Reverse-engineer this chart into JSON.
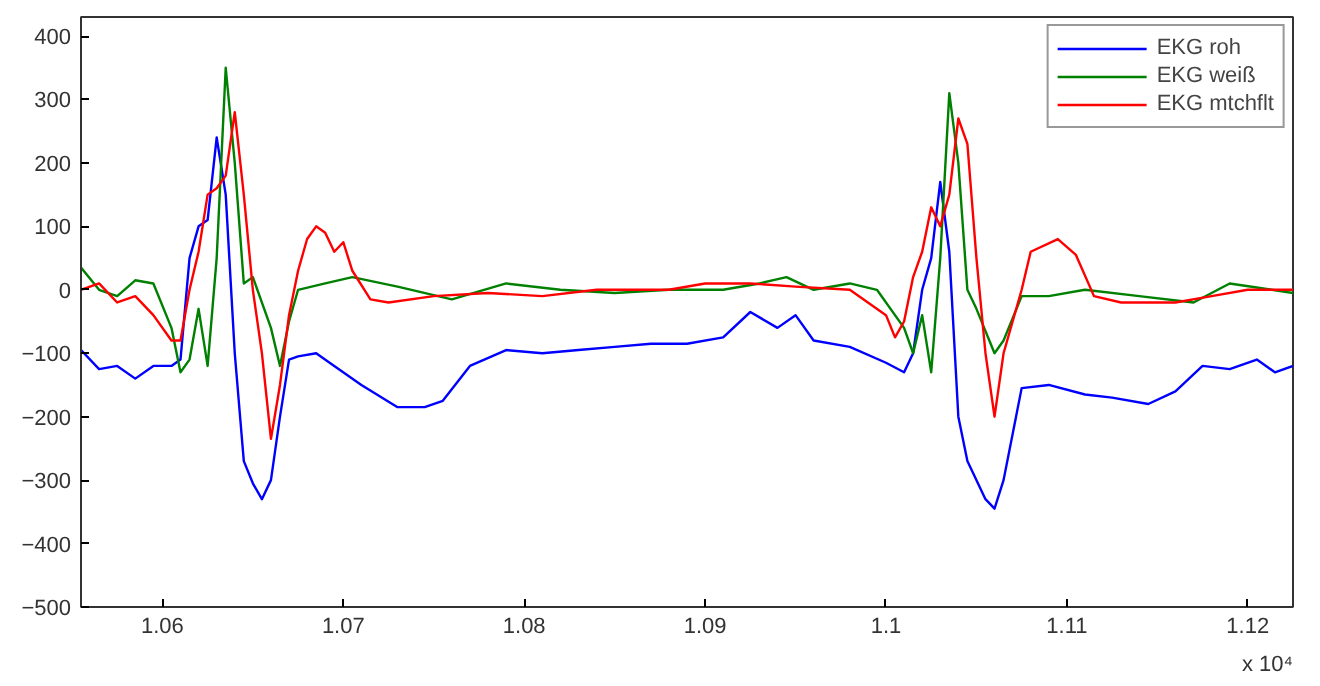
{
  "chart_data": {
    "type": "line",
    "xlim": [
      1.0555,
      1.1225
    ],
    "ylim": [
      -500,
      430
    ],
    "xticks": [
      1.06,
      1.07,
      1.08,
      1.09,
      {
        "value": 1.1,
        "label": "1.1"
      },
      1.11,
      1.12
    ],
    "yticks": [
      -500,
      -400,
      -300,
      -200,
      -100,
      0,
      100,
      200,
      300,
      400
    ],
    "annotations": [
      "x 10⁴"
    ],
    "legend": "top right",
    "grid": false,
    "line_style": "solid",
    "marker": "none",
    "series": [
      {
        "name": "EKG roh",
        "color": "#0000ff",
        "x": [
          1.0555,
          1.0565,
          1.0575,
          1.0585,
          1.0595,
          1.0605,
          1.061,
          1.0615,
          1.062,
          1.0625,
          1.063,
          1.0635,
          1.064,
          1.0645,
          1.065,
          1.0655,
          1.066,
          1.0665,
          1.067,
          1.0675,
          1.0685,
          1.0695,
          1.071,
          1.073,
          1.0745,
          1.0755,
          1.077,
          1.079,
          1.081,
          1.083,
          1.085,
          1.087,
          1.089,
          1.091,
          1.0925,
          1.094,
          1.095,
          1.096,
          1.098,
          1.1,
          1.101,
          1.1015,
          1.102,
          1.1025,
          1.103,
          1.1035,
          1.104,
          1.1045,
          1.1055,
          1.106,
          1.1065,
          1.1075,
          1.109,
          1.111,
          1.1125,
          1.1145,
          1.116,
          1.1175,
          1.119,
          1.1205,
          1.1215,
          1.1225
        ],
        "values": [
          -95,
          -125,
          -120,
          -140,
          -120,
          -120,
          -110,
          50,
          100,
          110,
          240,
          150,
          -100,
          -270,
          -305,
          -330,
          -300,
          -200,
          -110,
          -105,
          -100,
          -120,
          -150,
          -185,
          -185,
          -175,
          -120,
          -95,
          -100,
          -95,
          -90,
          -85,
          -85,
          -75,
          -35,
          -60,
          -40,
          -80,
          -90,
          -115,
          -130,
          -100,
          0,
          50,
          170,
          60,
          -200,
          -270,
          -330,
          -345,
          -300,
          -155,
          -150,
          -165,
          -170,
          -180,
          -160,
          -120,
          -125,
          -110,
          -130,
          -120
        ]
      },
      {
        "name": "EKG weiß",
        "color": "#008000",
        "x": [
          1.0555,
          1.0565,
          1.0575,
          1.0585,
          1.0595,
          1.0605,
          1.061,
          1.0615,
          1.062,
          1.0625,
          1.063,
          1.0635,
          1.064,
          1.0645,
          1.065,
          1.066,
          1.0665,
          1.067,
          1.0675,
          1.069,
          1.0705,
          1.073,
          1.076,
          1.079,
          1.082,
          1.085,
          1.088,
          1.091,
          1.093,
          1.0945,
          1.096,
          1.098,
          1.0995,
          1.101,
          1.1015,
          1.102,
          1.1025,
          1.103,
          1.1035,
          1.104,
          1.1045,
          1.105,
          1.106,
          1.1065,
          1.1075,
          1.109,
          1.111,
          1.114,
          1.117,
          1.119,
          1.1225
        ],
        "values": [
          35,
          0,
          -10,
          15,
          10,
          -60,
          -130,
          -110,
          -30,
          -120,
          50,
          350,
          200,
          10,
          20,
          -60,
          -120,
          -50,
          0,
          10,
          20,
          5,
          -15,
          10,
          0,
          -5,
          0,
          0,
          10,
          20,
          0,
          10,
          0,
          -60,
          -100,
          -40,
          -130,
          50,
          310,
          200,
          0,
          -30,
          -100,
          -80,
          -10,
          -10,
          0,
          -10,
          -20,
          10,
          -5
        ]
      },
      {
        "name": "EKG mtchflt",
        "color": "#ff0000",
        "x": [
          1.0555,
          1.0565,
          1.0575,
          1.0585,
          1.0595,
          1.0605,
          1.061,
          1.0615,
          1.062,
          1.0625,
          1.063,
          1.0635,
          1.064,
          1.0645,
          1.065,
          1.0655,
          1.066,
          1.0665,
          1.067,
          1.0675,
          1.068,
          1.0685,
          1.069,
          1.0695,
          1.07,
          1.0705,
          1.0715,
          1.0725,
          1.075,
          1.078,
          1.081,
          1.084,
          1.088,
          1.09,
          1.0925,
          1.095,
          1.098,
          1.1,
          1.1005,
          1.101,
          1.1015,
          1.102,
          1.1025,
          1.103,
          1.1035,
          1.104,
          1.1045,
          1.105,
          1.1055,
          1.106,
          1.1065,
          1.1075,
          1.108,
          1.1095,
          1.1105,
          1.1115,
          1.113,
          1.116,
          1.118,
          1.12,
          1.1225
        ],
        "values": [
          0,
          10,
          -20,
          -10,
          -40,
          -80,
          -80,
          0,
          60,
          150,
          160,
          180,
          280,
          150,
          0,
          -100,
          -235,
          -150,
          -40,
          30,
          80,
          100,
          90,
          60,
          75,
          30,
          -15,
          -20,
          -10,
          -5,
          -10,
          0,
          0,
          10,
          10,
          5,
          0,
          -40,
          -75,
          -50,
          20,
          60,
          130,
          100,
          150,
          270,
          230,
          50,
          -100,
          -200,
          -100,
          0,
          60,
          80,
          55,
          -10,
          -20,
          -20,
          -10,
          0,
          0
        ]
      }
    ]
  }
}
